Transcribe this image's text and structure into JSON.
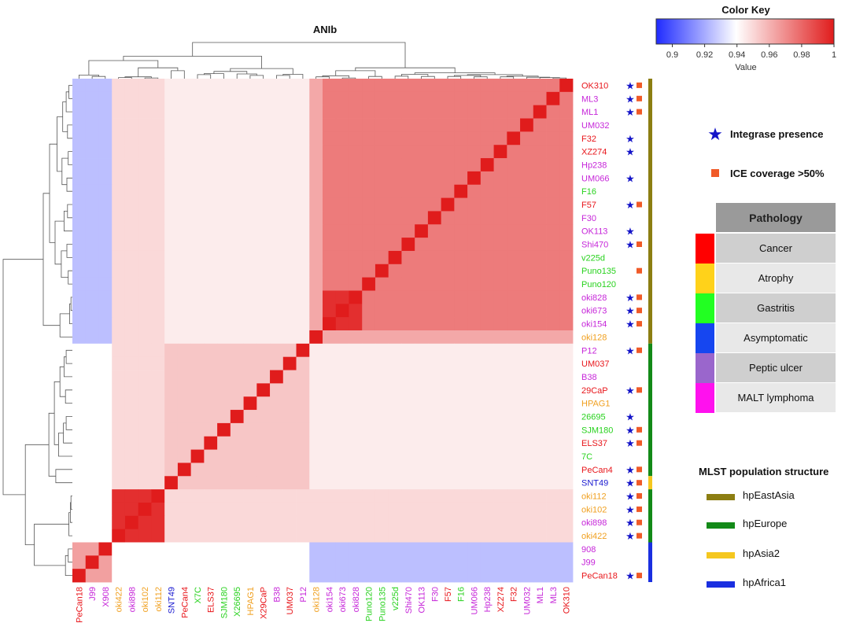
{
  "chart_data": {
    "type": "heatmap",
    "title": "ANIb",
    "rows": [
      "OK310",
      "ML3",
      "ML1",
      "UM032",
      "F32",
      "XZ274",
      "Hp238",
      "UM066",
      "F16",
      "F57",
      "F30",
      "OK113",
      "Shi470",
      "v225d",
      "Puno135",
      "Puno120",
      "oki828",
      "oki673",
      "oki154",
      "oki128",
      "P12",
      "UM037",
      "B38",
      "29CaP",
      "HPAG1",
      "26695",
      "SJM180",
      "ELS37",
      "7C",
      "PeCan4",
      "SNT49",
      "oki112",
      "oki102",
      "oki898",
      "oki422",
      "908",
      "J99",
      "PeCan18"
    ],
    "columns": [
      "PeCan18",
      "J99",
      "X908",
      "oki422",
      "oki898",
      "oki102",
      "oki112",
      "SNT49",
      "PeCan4",
      "X7C",
      "ELS37",
      "SJM180",
      "X26695",
      "HPAG1",
      "X29CaP",
      "B38",
      "UM037",
      "P12",
      "oki128",
      "oki154",
      "oki673",
      "oki828",
      "Puno120",
      "Puno135",
      "v225d",
      "Shi470",
      "OK113",
      "F30",
      "F57",
      "F16",
      "UM066",
      "Hp238",
      "XZ274",
      "F32",
      "UM032",
      "ML1",
      "ML3",
      "OK310"
    ],
    "row_label_colors": [
      "#e8161b",
      "#c626d9",
      "#c626d9",
      "#c626d9",
      "#e8161b",
      "#e8161b",
      "#c626d9",
      "#c626d9",
      "#28d21e",
      "#e8161b",
      "#c626d9",
      "#c626d9",
      "#c626d9",
      "#28d21e",
      "#28d21e",
      "#28d21e",
      "#c626d9",
      "#c626d9",
      "#c626d9",
      "#f0a020",
      "#c626d9",
      "#e8161b",
      "#c626d9",
      "#e8161b",
      "#f0a020",
      "#28d21e",
      "#28d21e",
      "#e8161b",
      "#28d21e",
      "#e8161b",
      "#1a1ad0",
      "#f0a020",
      "#f0a020",
      "#c626d9",
      "#f0a020",
      "#c626d9",
      "#c626d9",
      "#e8161b"
    ],
    "column_label_colors": [
      "#e8161b",
      "#c626d9",
      "#c626d9",
      "#f0a020",
      "#c626d9",
      "#f0a020",
      "#f0a020",
      "#1a1ad0",
      "#e8161b",
      "#28d21e",
      "#e8161b",
      "#28d21e",
      "#28d21e",
      "#f0a020",
      "#e8161b",
      "#c626d9",
      "#e8161b",
      "#c626d9",
      "#f0a020",
      "#c626d9",
      "#c626d9",
      "#c626d9",
      "#28d21e",
      "#28d21e",
      "#28d21e",
      "#c626d9",
      "#c626d9",
      "#c626d9",
      "#e8161b",
      "#28d21e",
      "#c626d9",
      "#c626d9",
      "#e8161b",
      "#e8161b",
      "#c626d9",
      "#c626d9",
      "#c626d9",
      "#e8161b"
    ],
    "integrase_presence_rows": [
      "OK310",
      "ML3",
      "ML1",
      "F32",
      "XZ274",
      "UM066",
      "F57",
      "OK113",
      "Shi470",
      "oki828",
      "oki673",
      "oki154",
      "P12",
      "29CaP",
      "26695",
      "SJM180",
      "ELS37",
      "PeCan4",
      "SNT49",
      "oki112",
      "oki102",
      "oki898",
      "oki422",
      "PeCan18"
    ],
    "ice_coverage_rows": [
      "OK310",
      "ML3",
      "ML1",
      "F57",
      "Shi470",
      "Puno135",
      "oki828",
      "oki673",
      "oki154",
      "P12",
      "29CaP",
      "SJM180",
      "ELS37",
      "PeCan4",
      "SNT49",
      "oki112",
      "oki102",
      "oki898",
      "oki422",
      "PeCan18"
    ],
    "color_key": {
      "title": "Color Key",
      "xlabel": "Value",
      "range": [
        0.89,
        1.0
      ],
      "ticks": [
        "0.9",
        "0.92",
        "0.94",
        "0.96",
        "0.98",
        "1"
      ],
      "low_color": "#1f2bff",
      "mid_color": "#ffffff",
      "high_color": "#e01c1c"
    },
    "value_bands": {
      "eastasia_within": 0.975,
      "within_tight_pair": 0.995,
      "europe_within": 0.955,
      "cross_population": 0.945,
      "africa_vs_eastasia": 0.925,
      "africa_vs_europe": 0.94,
      "diagonal": 1.0
    },
    "population_groups": [
      {
        "name": "hpEastAsia",
        "color": "#8c7e12",
        "rows_from": "OK310",
        "rows_to": "oki128"
      },
      {
        "name": "hpEurope",
        "color": "#138a18",
        "rows_from": "P12",
        "rows_to": "PeCan4"
      },
      {
        "name": "hpAsia2",
        "color": "#f5c71f",
        "rows_from": "SNT49",
        "rows_to": "SNT49"
      },
      {
        "name": "hpEurope",
        "color": "#138a18",
        "rows_from": "oki112",
        "rows_to": "oki422"
      },
      {
        "name": "hpAfrica1",
        "color": "#1a2fe0",
        "rows_from": "908",
        "rows_to": "PeCan18"
      }
    ]
  },
  "legend": {
    "integrase_label": "Integrase presence",
    "ice_label": "ICE coverage >50%",
    "star_color": "#1414c8",
    "square_color": "#f05a28"
  },
  "pathology": {
    "header": "Pathology",
    "items": [
      {
        "label": "Cancer",
        "color": "#ff0000"
      },
      {
        "label": "Atrophy",
        "color": "#ffd21a"
      },
      {
        "label": "Gastritis",
        "color": "#22ff22"
      },
      {
        "label": "Asymptomatic",
        "color": "#1646f0"
      },
      {
        "label": "Peptic ulcer",
        "color": "#9a66cc"
      },
      {
        "label": "MALT lymphoma",
        "color": "#ff11ee"
      }
    ]
  },
  "mlst": {
    "title": "MLST population structure",
    "items": [
      {
        "label": "hpEastAsia",
        "color": "#8c7e12"
      },
      {
        "label": "hpEurope",
        "color": "#138a18"
      },
      {
        "label": "hpAsia2",
        "color": "#f5c71f"
      },
      {
        "label": "hpAfrica1",
        "color": "#1a2fe0"
      }
    ]
  }
}
